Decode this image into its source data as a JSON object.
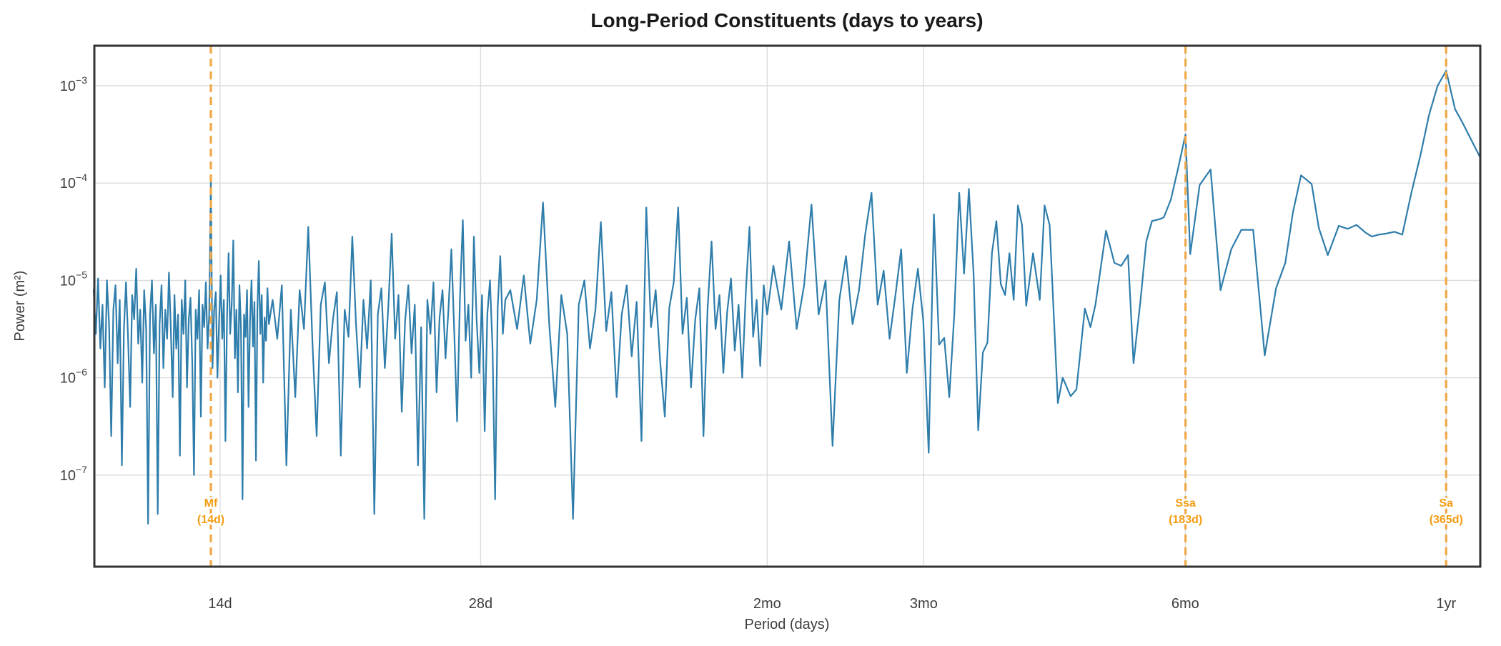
{
  "chart_data": {
    "type": "line",
    "title": "Long-Period Constituents (days to years)",
    "xlabel": "Period (days)",
    "ylabel": "Power (m²)",
    "x_scale": "log",
    "y_scale": "log",
    "grid": true,
    "legend": "none",
    "xlim_days": [
      10,
      400
    ],
    "ylim": [
      1.2e-08,
      0.0026
    ],
    "x_ticks": [
      {
        "label": "14d",
        "days": 14
      },
      {
        "label": "28d",
        "days": 28
      },
      {
        "label": "2mo",
        "days": 60
      },
      {
        "label": "3mo",
        "days": 91
      },
      {
        "label": "6mo",
        "days": 182.5
      },
      {
        "label": "1yr",
        "days": 365.25
      }
    ],
    "y_ticks": [
      {
        "base": "10",
        "exp": -3
      },
      {
        "base": "10",
        "exp": -4
      },
      {
        "base": "10",
        "exp": -5
      },
      {
        "base": "10",
        "exp": -6
      },
      {
        "base": "10",
        "exp": -7
      }
    ],
    "constituents": [
      {
        "name": "Mf",
        "sublabel": "(14d)",
        "days": 13.66,
        "peak_power": 0.00011
      },
      {
        "name": "Ssa",
        "sublabel": "(183d)",
        "days": 182.6,
        "peak_power": 0.00032
      },
      {
        "name": "Sa",
        "sublabel": "(365d)",
        "days": 365.25,
        "peak_power": 0.0014
      }
    ],
    "series": [
      {
        "name": "power-spectrum",
        "periods_days": [
          10.0,
          10.06,
          10.12,
          10.18,
          10.24,
          10.3,
          10.36,
          10.42,
          10.48,
          10.54,
          10.6,
          10.66,
          10.72,
          10.78,
          10.84,
          10.9,
          10.96,
          11.02,
          11.08,
          11.14,
          11.2,
          11.26,
          11.32,
          11.38,
          11.44,
          11.5,
          11.56,
          11.62,
          11.68,
          11.74,
          11.8,
          11.86,
          11.92,
          11.98,
          12.04,
          12.1,
          12.16,
          12.22,
          12.28,
          12.34,
          12.4,
          12.46,
          12.52,
          12.58,
          12.64,
          12.7,
          12.76,
          12.82,
          12.88,
          12.94,
          13.0,
          13.06,
          13.12,
          13.18,
          13.24,
          13.3,
          13.36,
          13.42,
          13.48,
          13.54,
          13.6,
          13.66,
          13.72,
          13.78,
          13.84,
          13.9,
          13.96,
          14.02,
          14.08,
          14.14,
          14.2,
          14.26,
          14.32,
          14.38,
          14.44,
          14.5,
          14.56,
          14.62,
          14.68,
          14.74,
          14.8,
          14.86,
          14.92,
          14.98,
          15.04,
          15.1,
          15.16,
          15.22,
          15.28,
          15.34,
          15.4,
          15.46,
          15.52,
          15.58,
          15.64,
          15.7,
          15.76,
          15.82,
          15.88,
          15.94,
          16.1,
          16.3,
          16.5,
          16.7,
          16.9,
          17.1,
          17.3,
          17.5,
          17.7,
          17.9,
          18.1,
          18.3,
          18.5,
          18.7,
          18.9,
          19.1,
          19.3,
          19.5,
          19.7,
          19.9,
          20.1,
          20.3,
          20.5,
          20.7,
          20.9,
          21.1,
          21.3,
          21.5,
          21.7,
          21.9,
          22.1,
          22.3,
          22.5,
          22.7,
          22.9,
          23.1,
          23.3,
          23.5,
          23.7,
          23.9,
          24.1,
          24.3,
          24.5,
          24.7,
          24.9,
          25.1,
          25.3,
          25.5,
          25.7,
          25.9,
          26.1,
          26.3,
          26.5,
          26.7,
          26.9,
          27.1,
          27.3,
          27.5,
          27.7,
          27.9,
          28.1,
          28.3,
          28.5,
          28.7,
          28.9,
          29.1,
          29.3,
          29.5,
          29.7,
          29.9,
          30.3,
          30.85,
          31.4,
          31.95,
          32.5,
          33.05,
          33.6,
          34.15,
          34.7,
          35.25,
          35.8,
          36.35,
          36.9,
          37.45,
          38.0,
          38.55,
          39.1,
          39.65,
          40.2,
          40.75,
          41.3,
          41.85,
          42.4,
          42.95,
          43.5,
          44.05,
          44.6,
          45.15,
          45.7,
          46.25,
          46.8,
          47.35,
          47.9,
          48.45,
          49.0,
          49.55,
          50.1,
          50.65,
          51.2,
          51.75,
          52.3,
          52.85,
          53.4,
          53.95,
          54.5,
          55.05,
          55.6,
          56.15,
          56.7,
          57.25,
          57.8,
          58.35,
          58.9,
          59.45,
          60.0,
          61.0,
          62.3,
          63.6,
          64.9,
          66.2,
          67.5,
          68.8,
          70.1,
          71.4,
          72.7,
          74.0,
          75.3,
          76.6,
          77.9,
          79.2,
          80.5,
          81.8,
          83.1,
          84.4,
          85.7,
          87.0,
          88.3,
          89.6,
          90.9,
          92.2,
          93.5,
          94.8,
          96.1,
          97.4,
          98.7,
          100.0,
          101.3,
          102.6,
          103.9,
          105.2,
          106.5,
          107.8,
          109.1,
          110.4,
          111.7,
          113.0,
          114.3,
          115.6,
          116.9,
          118.2,
          119.5,
          121.7,
          123.9,
          125.5,
          127.2,
          130.0,
          131.7,
          134.5,
          136.6,
          139.7,
          141.8,
          143.7,
          147.8,
          149.7,
          151.1,
          153.9,
          156.7,
          159.0,
          162.0,
          164.5,
          167.0,
          170.6,
          172.4,
          175.6,
          179.0,
          182.6,
          184.9,
          189.6,
          195.2,
          200.4,
          206.2,
          211.8,
          218.6,
          225.4,
          232.3,
          238.1,
          243.0,
          248.3,
          255.4,
          260.3,
          266.6,
          274.5,
          281.0,
          287.8,
          294.9,
          299.8,
          305.0,
          311.1,
          318.3,
          325.0,
          333.0,
          341.0,
          349.0,
          357.0,
          365.25,
          374.0,
          381.0,
          400.0
        ],
        "log10_power": [
          -5.1,
          -5.55,
          -4.98,
          -5.7,
          -5.25,
          -6.1,
          -5.0,
          -5.45,
          -6.6,
          -5.3,
          -5.05,
          -5.85,
          -5.2,
          -6.9,
          -5.5,
          -5.02,
          -5.6,
          -6.3,
          -5.15,
          -5.4,
          -4.88,
          -5.65,
          -5.3,
          -6.05,
          -5.1,
          -5.5,
          -7.5,
          -5.35,
          -5.0,
          -5.75,
          -5.25,
          -7.4,
          -5.45,
          -5.05,
          -5.9,
          -5.3,
          -5.6,
          -4.92,
          -5.5,
          -6.2,
          -5.15,
          -5.7,
          -5.35,
          -6.8,
          -5.2,
          -5.55,
          -5.0,
          -6.1,
          -5.4,
          -5.18,
          -5.85,
          -7.0,
          -5.3,
          -5.6,
          -5.1,
          -6.4,
          -5.25,
          -5.48,
          -5.02,
          -5.7,
          -5.35,
          -3.96,
          -5.9,
          -5.3,
          -5.12,
          -6.0,
          -5.45,
          -4.95,
          -5.6,
          -5.2,
          -6.65,
          -5.38,
          -4.72,
          -5.55,
          -5.25,
          -4.59,
          -5.8,
          -5.3,
          -6.15,
          -5.05,
          -5.5,
          -7.25,
          -5.35,
          -5.58,
          -5.1,
          -6.3,
          -5.42,
          -5.0,
          -5.68,
          -5.22,
          -6.85,
          -5.3,
          -4.8,
          -5.55,
          -5.15,
          -6.05,
          -5.38,
          -5.62,
          -5.08,
          -5.45,
          -5.2,
          -5.6,
          -5.05,
          -6.9,
          -5.3,
          -6.2,
          -5.1,
          -5.5,
          -4.45,
          -5.65,
          -6.6,
          -5.25,
          -5.02,
          -5.85,
          -5.4,
          -5.12,
          -6.8,
          -5.3,
          -5.58,
          -4.55,
          -5.45,
          -6.1,
          -5.2,
          -5.7,
          -5.0,
          -7.4,
          -5.35,
          -5.08,
          -5.9,
          -5.28,
          -4.52,
          -5.6,
          -5.15,
          -6.35,
          -5.42,
          -5.05,
          -5.75,
          -5.25,
          -6.9,
          -5.48,
          -7.45,
          -5.2,
          -5.55,
          -5.02,
          -6.15,
          -5.38,
          -5.1,
          -5.8,
          -5.3,
          -4.68,
          -5.52,
          -6.45,
          -5.18,
          -4.38,
          -5.62,
          -5.25,
          -6.0,
          -4.55,
          -5.4,
          -5.95,
          -5.15,
          -6.55,
          -5.35,
          -5.0,
          -5.7,
          -7.25,
          -5.28,
          -4.75,
          -5.55,
          -5.2,
          -5.1,
          -5.5,
          -4.95,
          -5.65,
          -5.2,
          -4.2,
          -5.45,
          -6.3,
          -5.15,
          -5.55,
          -7.45,
          -5.25,
          -5.0,
          -5.7,
          -5.3,
          -4.4,
          -5.52,
          -5.12,
          -6.2,
          -5.35,
          -5.05,
          -5.78,
          -5.22,
          -6.65,
          -4.25,
          -5.48,
          -5.1,
          -5.85,
          -6.4,
          -5.28,
          -5.02,
          -4.25,
          -5.55,
          -5.18,
          -6.1,
          -5.4,
          -5.08,
          -6.6,
          -5.3,
          -4.6,
          -5.5,
          -5.15,
          -5.95,
          -5.32,
          -4.98,
          -5.72,
          -5.25,
          -6.0,
          -5.1,
          -4.45,
          -5.58,
          -5.2,
          -5.88,
          -5.05,
          -5.35,
          -4.85,
          -5.3,
          -4.6,
          -5.5,
          -5.05,
          -4.22,
          -5.35,
          -5.0,
          -6.7,
          -5.2,
          -4.75,
          -5.45,
          -5.1,
          -4.52,
          -4.1,
          -5.25,
          -4.9,
          -5.6,
          -5.15,
          -4.68,
          -5.95,
          -5.3,
          -4.88,
          -5.42,
          -6.77,
          -4.32,
          -5.66,
          -5.59,
          -6.2,
          -5.35,
          -4.1,
          -4.93,
          -4.06,
          -4.93,
          -6.54,
          -5.74,
          -5.64,
          -4.72,
          -4.39,
          -5.04,
          -5.15,
          -4.72,
          -5.2,
          -4.23,
          -4.43,
          -5.26,
          -4.72,
          -5.2,
          -4.23,
          -4.43,
          -6.26,
          -6.0,
          -6.19,
          -6.12,
          -5.29,
          -5.48,
          -5.25,
          -4.49,
          -4.68,
          -4.82,
          -4.85,
          -4.74,
          -5.85,
          -5.2,
          -4.6,
          -4.39,
          -4.37,
          -4.35,
          -4.17,
          -3.85,
          -3.5,
          -4.73,
          -4.02,
          -3.86,
          -5.1,
          -4.68,
          -4.48,
          -4.48,
          -5.77,
          -5.08,
          -4.82,
          -4.3,
          -3.92,
          -4.01,
          -4.46,
          -4.74,
          -4.44,
          -4.47,
          -4.43,
          -4.51,
          -4.55,
          -4.53,
          -4.52,
          -4.5,
          -4.53,
          -4.1,
          -3.72,
          -3.3,
          -3.0,
          -2.845,
          -3.24,
          -3.37,
          -3.74
        ]
      }
    ],
    "colors": {
      "line": "#2e7dab",
      "vline": "#f0a848",
      "annotation_text": "#f39c12",
      "grid": "#dcdcdc",
      "spine": "#333333",
      "tick_text": "#3d3d3d",
      "title_text": "#1a1a1a",
      "background": "#ffffff"
    }
  }
}
